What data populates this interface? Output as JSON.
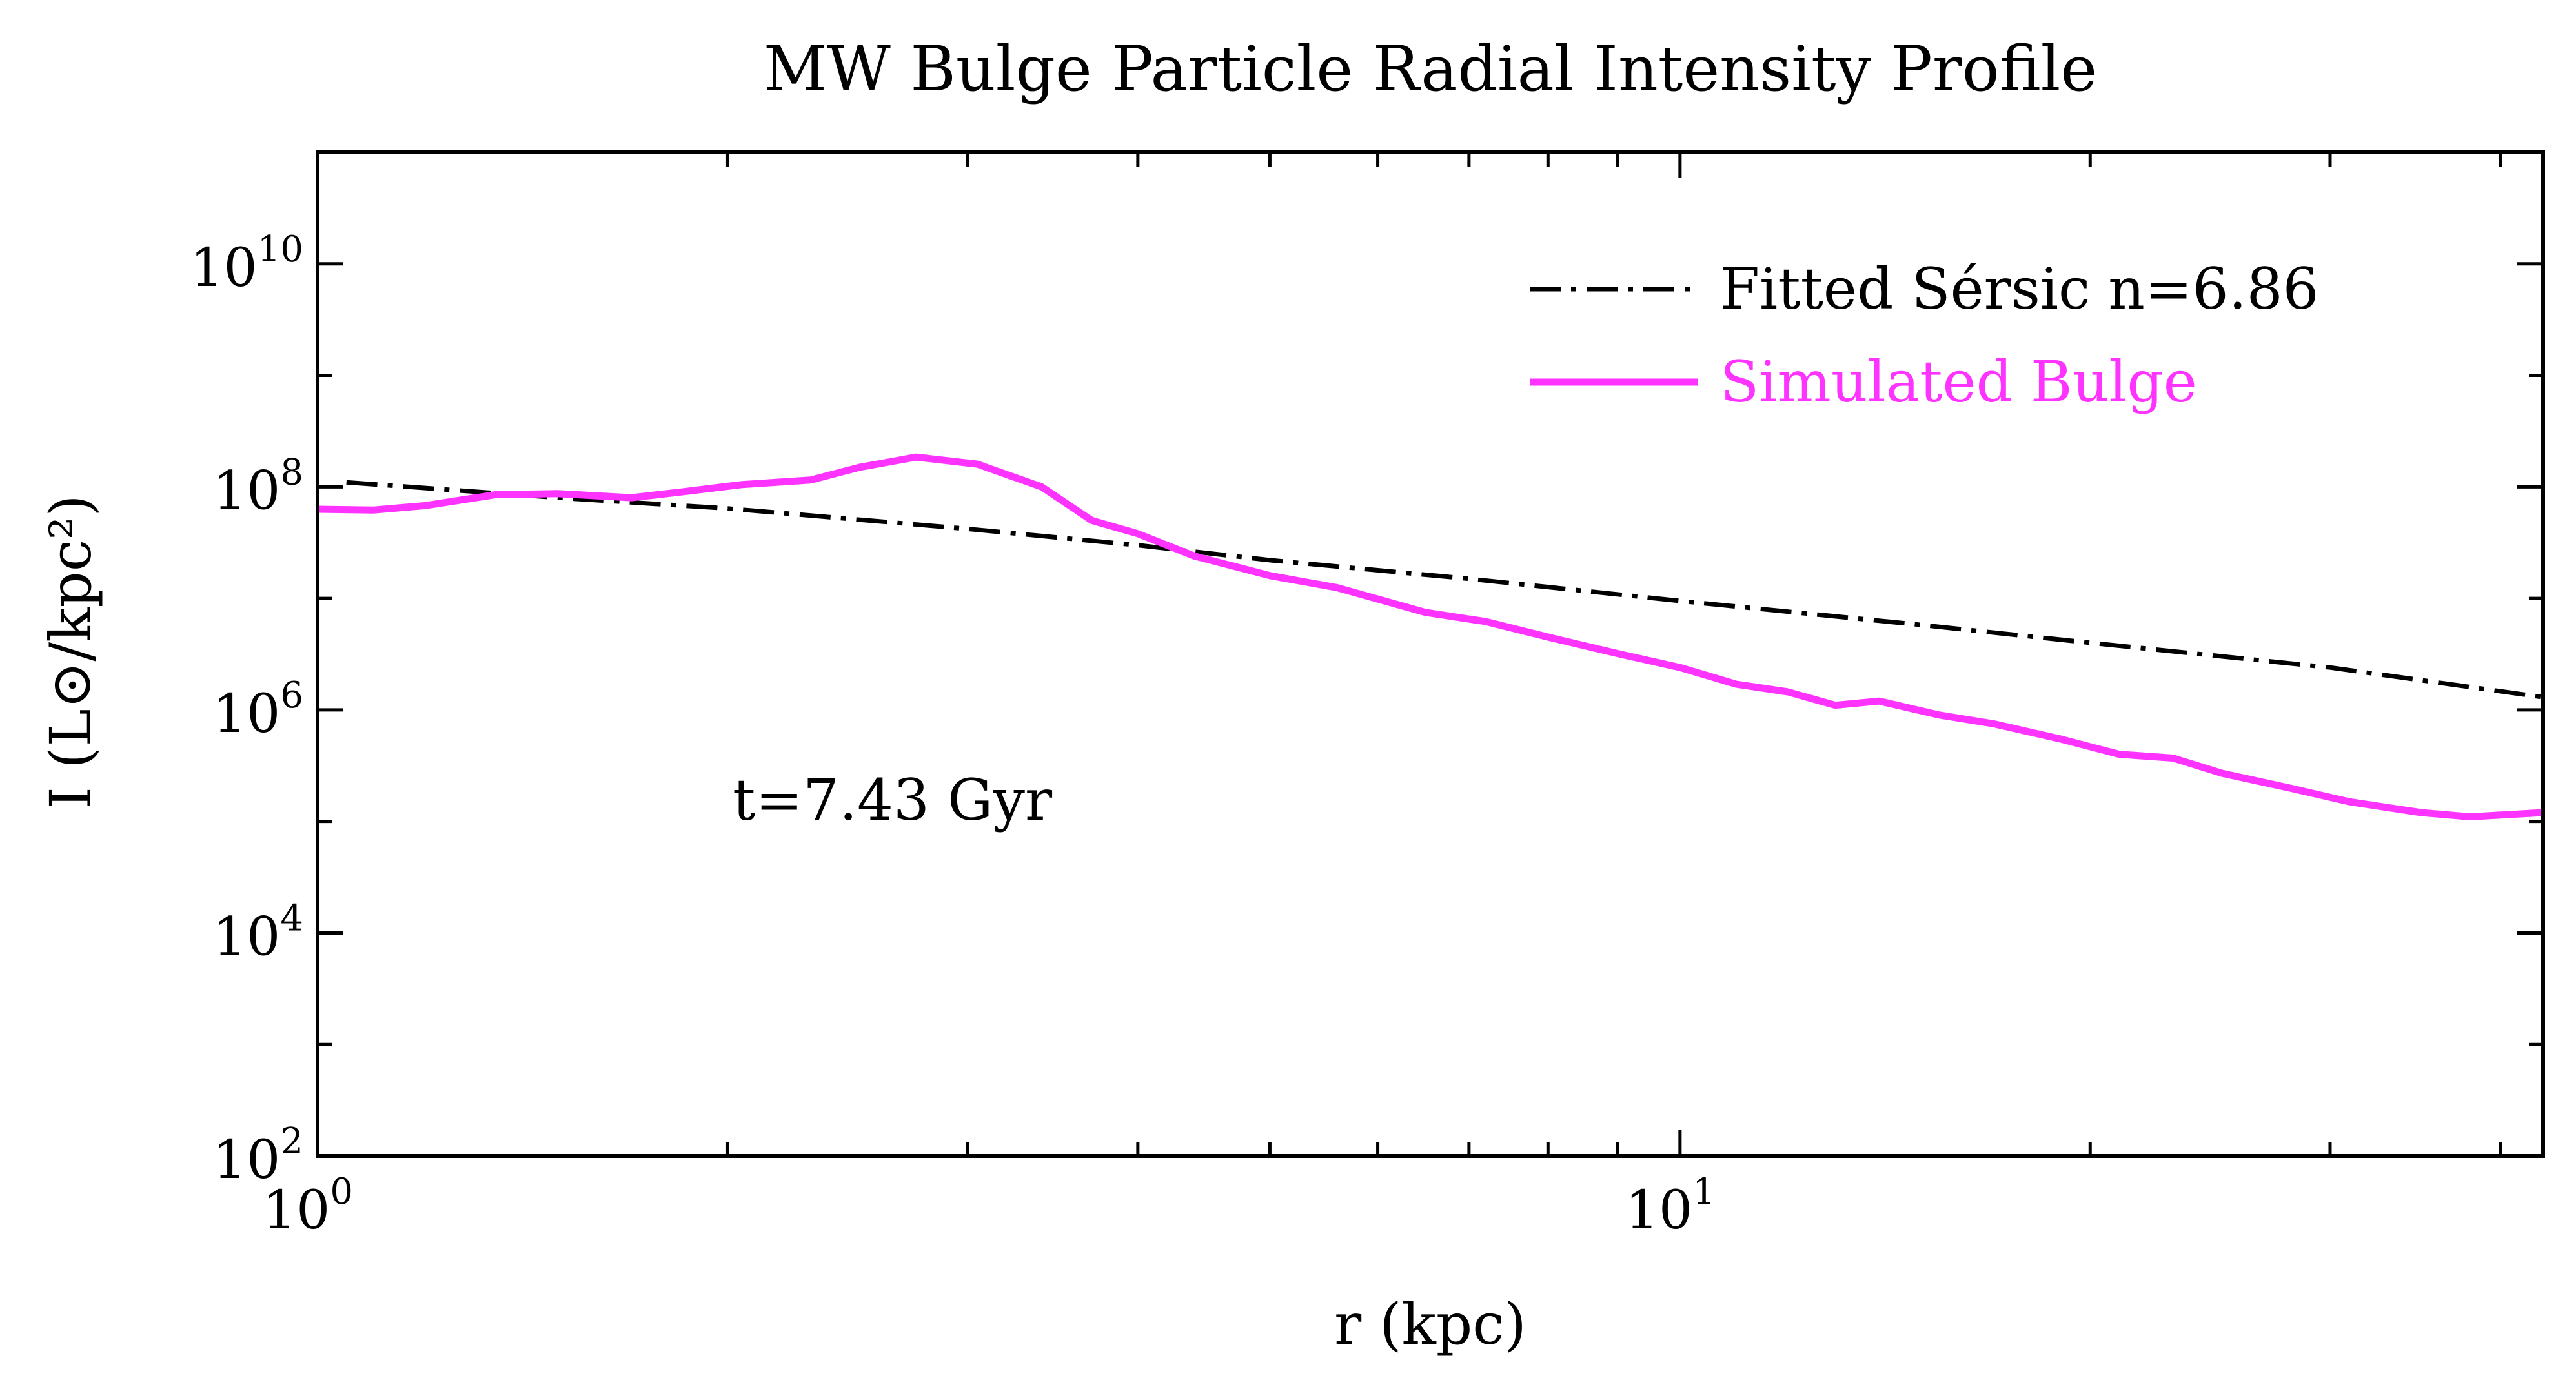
{
  "chart_data": {
    "type": "line",
    "title": "MW Bulge Particle Radial Intensity Profile",
    "xlabel": "r (kpc)",
    "ylabel": "I (L⊙/kpc²)",
    "xscale": "log",
    "yscale": "log",
    "xlim": [
      1.0,
      43
    ],
    "ylim": [
      100,
      100000000000
    ],
    "x_ticks": [
      {
        "value": 1,
        "base": "10",
        "exp": "0"
      },
      {
        "value": 10,
        "base": "10",
        "exp": "1"
      }
    ],
    "y_ticks": [
      {
        "value": 100,
        "base": "10",
        "exp": "2"
      },
      {
        "value": 10000,
        "base": "10",
        "exp": "4"
      },
      {
        "value": 1000000,
        "base": "10",
        "exp": "6"
      },
      {
        "value": 100000000,
        "base": "10",
        "exp": "8"
      },
      {
        "value": 10000000000,
        "base": "10",
        "exp": "10"
      }
    ],
    "legend_position": "top-right",
    "series": [
      {
        "name": "Fitted Sérsic n=6.86",
        "style": "dashdot",
        "color": "#000000",
        "x": [
          1.05,
          1.5,
          2.0,
          3.0,
          4.0,
          5.0,
          7.0,
          10.0,
          15.0,
          20.0,
          30.0,
          43.0
        ],
        "y": [
          110000000,
          80000000,
          64000000,
          42000000,
          30000000,
          22000000,
          15000000,
          9500000,
          5800000,
          4000000,
          2400000,
          1300000
        ]
      },
      {
        "name": "Simulated Bulge",
        "style": "solid",
        "color": "#ff33ff",
        "x": [
          1.0,
          1.1,
          1.2,
          1.35,
          1.5,
          1.7,
          1.85,
          2.05,
          2.3,
          2.5,
          2.75,
          3.05,
          3.4,
          3.7,
          4.0,
          4.4,
          5.0,
          5.6,
          6.5,
          7.2,
          8.0,
          9.0,
          10.0,
          11.0,
          12.0,
          13.0,
          14.0,
          15.5,
          17.0,
          19.0,
          21.0,
          23.0,
          25.0,
          28.0,
          31.0,
          35.0,
          38.0,
          43.0
        ],
        "y": [
          63000000,
          62000000,
          68000000,
          85000000,
          87000000,
          80000000,
          90000000,
          105000000,
          115000000,
          150000000,
          185000000,
          160000000,
          100000000,
          50000000,
          38000000,
          24000000,
          16000000,
          12500000,
          7500000,
          6200000,
          4500000,
          3200000,
          2400000,
          1700000,
          1450000,
          1100000,
          1200000,
          900000,
          750000,
          550000,
          400000,
          370000,
          270000,
          200000,
          150000,
          120000,
          110000,
          120000
        ]
      }
    ],
    "annotation": "t=7.43 Gyr"
  },
  "colors": {
    "axes": "#000000",
    "sersic": "#000000",
    "simulated": "#ff33ff"
  }
}
